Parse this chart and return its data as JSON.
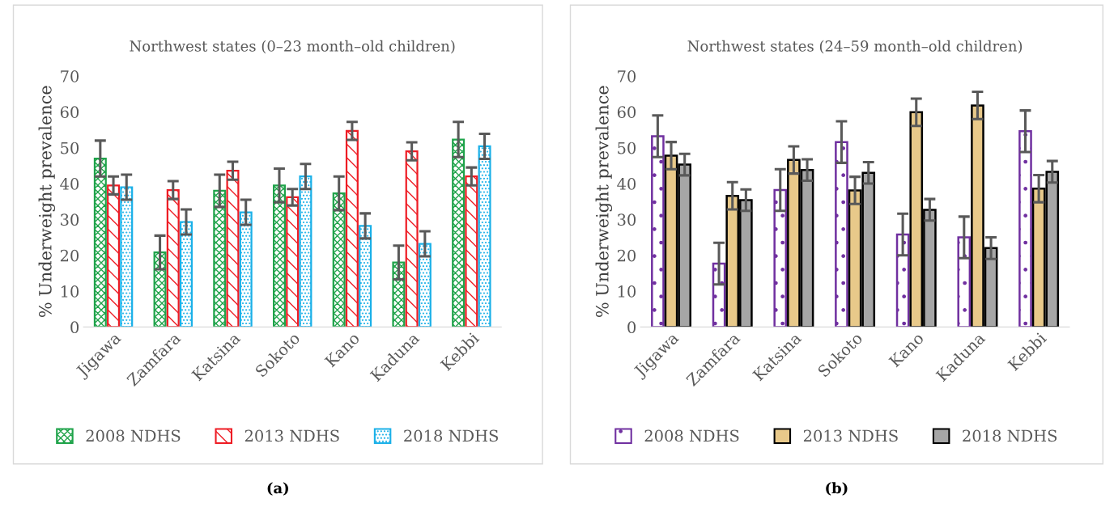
{
  "chart_data": [
    {
      "type": "bar",
      "title": "Northwest states (0–23 month–old children)",
      "ylabel": "% Underweight prevalence",
      "categories": [
        "Jigawa",
        "Zamfara",
        "Katsina",
        "Sokoto",
        "Kano",
        "Kaduna",
        "Kebbi"
      ],
      "ylim": [
        0,
        70
      ],
      "yticks": [
        0,
        10,
        20,
        30,
        40,
        50,
        60,
        70
      ],
      "grid": false,
      "legend": "bottom",
      "annotations": [
        "(a)"
      ],
      "series": [
        {
          "name": "2008 NDHS",
          "color": "#1fa34a",
          "values": [
            47,
            20.8,
            38,
            39.5,
            37.3,
            18,
            52.3
          ],
          "errors": [
            5,
            4.7,
            4.5,
            4.7,
            4.7,
            4.7,
            4.9
          ]
        },
        {
          "name": "2013 NDHS",
          "color": "#ee1c24",
          "values": [
            39.5,
            38.2,
            43.6,
            36.2,
            54.7,
            49,
            42
          ],
          "errors": [
            2.5,
            2.5,
            2.5,
            2.3,
            2.5,
            2.5,
            2.5
          ]
        },
        {
          "name": "2018 NDHS",
          "color": "#1ab0e8",
          "values": [
            39,
            29.3,
            32,
            42,
            28.2,
            23.2,
            50.4
          ],
          "errors": [
            3.5,
            3.5,
            3.5,
            3.5,
            3.5,
            3.5,
            3.5
          ]
        }
      ]
    },
    {
      "type": "bar",
      "title": "Northwest states (24–59 month–old children)",
      "ylabel": "% Underweight prevalence",
      "categories": [
        "Jigawa",
        "Zamfara",
        "Katsina",
        "Sokoto",
        "Kano",
        "Kaduna",
        "Kebbi"
      ],
      "ylim": [
        0,
        70
      ],
      "yticks": [
        0,
        10,
        20,
        30,
        40,
        50,
        60,
        70
      ],
      "grid": false,
      "legend": "bottom",
      "annotations": [
        "(b)"
      ],
      "series": [
        {
          "name": "2008 NDHS",
          "color": "#7030a0",
          "values": [
            53.2,
            17.7,
            38.2,
            51.6,
            25.8,
            25,
            54.6
          ],
          "errors": [
            5.8,
            5.8,
            5.8,
            5.8,
            5.8,
            5.8,
            5.8
          ]
        },
        {
          "name": "2013 NDHS",
          "color": "#e8c98a",
          "values": [
            47.8,
            36.6,
            46.6,
            38.1,
            59.9,
            61.8,
            38.6
          ],
          "errors": [
            3.8,
            3.8,
            3.8,
            3.8,
            3.8,
            3.8,
            3.8
          ]
        },
        {
          "name": "2018 NDHS",
          "color": "#a6a6a6",
          "values": [
            45.3,
            35.4,
            43.8,
            43,
            32.7,
            22,
            43.3
          ],
          "errors": [
            3,
            3,
            3,
            3,
            3,
            3,
            3
          ]
        }
      ]
    }
  ]
}
